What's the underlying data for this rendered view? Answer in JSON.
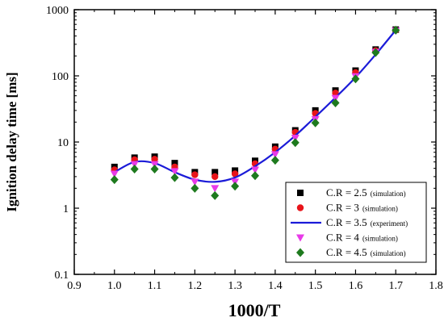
{
  "chart_data": {
    "type": "scatter",
    "xlabel": "1000/T",
    "ylabel": "Ignition delay time [ms]",
    "xlim": [
      0.9,
      1.8
    ],
    "ylim": [
      0.1,
      1000
    ],
    "yscale": "log",
    "grid": false,
    "legend_position": "bottom-right",
    "x_ticks": [
      "0.9",
      "1.0",
      "1.1",
      "1.2",
      "1.3",
      "1.4",
      "1.5",
      "1.6",
      "1.7",
      "1.8"
    ],
    "y_ticks": [
      "0.1",
      "1",
      "10",
      "100",
      "1000"
    ],
    "x": [
      1.0,
      1.05,
      1.1,
      1.15,
      1.2,
      1.25,
      1.3,
      1.35,
      1.4,
      1.45,
      1.5,
      1.55,
      1.6,
      1.65,
      1.7
    ],
    "series": [
      {
        "name": "C.R = 2.5",
        "note": "(simulation)",
        "marker": "square",
        "color": "#000000",
        "values": [
          4.2,
          5.8,
          6.0,
          4.8,
          3.5,
          3.5,
          3.7,
          5.2,
          8.5,
          15,
          30,
          60,
          120,
          250,
          500
        ]
      },
      {
        "name": "C.R = 3",
        "note": "(simulation)",
        "marker": "circle",
        "color": "#e8141a",
        "values": [
          3.8,
          5.4,
          5.5,
          4.2,
          3.2,
          3.0,
          3.3,
          4.7,
          7.8,
          14,
          27,
          55,
          112,
          240,
          490
        ]
      },
      {
        "name": "C.R = 3.5",
        "note": "(experiment)",
        "marker": "line",
        "color": "#1b1bd8",
        "values": [
          3.5,
          5.0,
          4.8,
          3.5,
          2.7,
          2.5,
          2.9,
          4.3,
          7.0,
          12.5,
          24,
          47,
          95,
          210,
          490
        ]
      },
      {
        "name": "C.R = 4",
        "note": "(simulation)",
        "marker": "triangle-down",
        "color": "#e83ae8",
        "values": [
          3.3,
          4.6,
          4.6,
          3.6,
          2.5,
          2.0,
          2.5,
          3.8,
          6.5,
          11.5,
          22,
          46,
          98,
          228,
          480
        ]
      },
      {
        "name": "C.R = 4.5",
        "note": "(simulation)",
        "marker": "diamond",
        "color": "#1e7a1e",
        "values": [
          2.7,
          3.9,
          3.9,
          2.9,
          2.0,
          1.55,
          2.15,
          3.1,
          5.3,
          9.8,
          19.5,
          39,
          90,
          225,
          490
        ]
      }
    ]
  }
}
